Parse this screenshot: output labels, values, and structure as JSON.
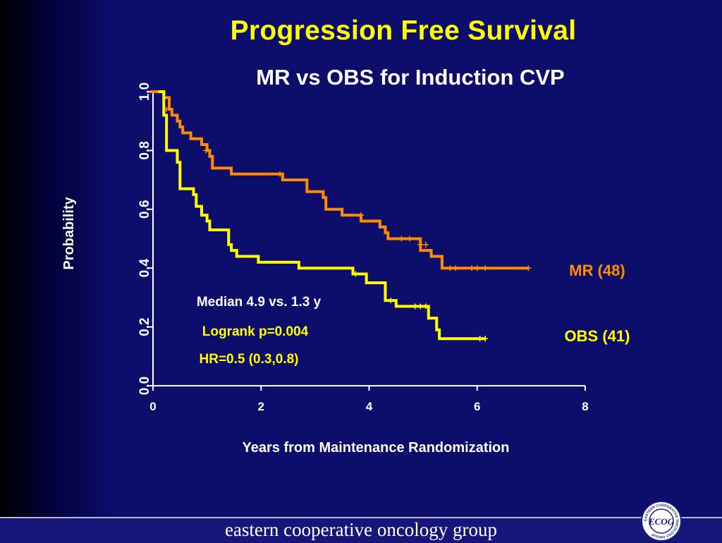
{
  "slide": {
    "title": "Progression Free Survival",
    "subtitle": "MR vs OBS for Induction CVP"
  },
  "chart_data": {
    "type": "line",
    "title": "Progression Free Survival",
    "subtitle": "MR vs OBS for Induction CVP",
    "xlabel": "Years from Maintenance Randomization",
    "ylabel": "Probability",
    "xlim": [
      0,
      8
    ],
    "ylim": [
      0,
      1
    ],
    "xticks": [
      "0",
      "2",
      "4",
      "6",
      "8"
    ],
    "yticks": [
      "0.0",
      "0.2",
      "0.4",
      "0.6",
      "0.8",
      "1.0"
    ],
    "grid": false,
    "series": [
      {
        "name": "MR (48)",
        "color": "#ff8c00",
        "steps": [
          [
            -0.05,
            1.0
          ],
          [
            0.2,
            0.98
          ],
          [
            0.3,
            0.94
          ],
          [
            0.35,
            0.92
          ],
          [
            0.45,
            0.9
          ],
          [
            0.5,
            0.88
          ],
          [
            0.55,
            0.86
          ],
          [
            0.7,
            0.84
          ],
          [
            0.9,
            0.82
          ],
          [
            1.0,
            0.8
          ],
          [
            1.05,
            0.78
          ],
          [
            1.1,
            0.74
          ],
          [
            1.45,
            0.72
          ],
          [
            2.4,
            0.7
          ],
          [
            2.85,
            0.66
          ],
          [
            3.15,
            0.64
          ],
          [
            3.2,
            0.6
          ],
          [
            3.5,
            0.58
          ],
          [
            3.85,
            0.56
          ],
          [
            4.2,
            0.54
          ],
          [
            4.3,
            0.52
          ],
          [
            4.35,
            0.5
          ],
          [
            4.95,
            0.46
          ],
          [
            5.15,
            0.44
          ],
          [
            5.35,
            0.4
          ],
          [
            6.95,
            0.4
          ]
        ],
        "censored": [
          [
            0.25,
            0.94
          ],
          [
            0.98,
            0.8
          ],
          [
            2.35,
            0.72
          ],
          [
            3.85,
            0.58
          ],
          [
            4.6,
            0.5
          ],
          [
            4.75,
            0.5
          ],
          [
            4.95,
            0.48
          ],
          [
            5.05,
            0.48
          ],
          [
            5.5,
            0.4
          ],
          [
            5.6,
            0.4
          ],
          [
            5.9,
            0.4
          ],
          [
            6.0,
            0.4
          ],
          [
            6.15,
            0.4
          ],
          [
            6.95,
            0.4
          ]
        ]
      },
      {
        "name": "OBS (41)",
        "color": "#ffff00",
        "steps": [
          [
            0.1,
            1.0
          ],
          [
            0.2,
            0.92
          ],
          [
            0.25,
            0.8
          ],
          [
            0.45,
            0.76
          ],
          [
            0.5,
            0.67
          ],
          [
            0.75,
            0.65
          ],
          [
            0.8,
            0.61
          ],
          [
            0.9,
            0.58
          ],
          [
            1.0,
            0.56
          ],
          [
            1.05,
            0.53
          ],
          [
            1.4,
            0.48
          ],
          [
            1.45,
            0.46
          ],
          [
            1.55,
            0.44
          ],
          [
            1.95,
            0.42
          ],
          [
            2.7,
            0.4
          ],
          [
            3.7,
            0.38
          ],
          [
            3.95,
            0.35
          ],
          [
            4.3,
            0.29
          ],
          [
            4.5,
            0.27
          ],
          [
            5.1,
            0.23
          ],
          [
            5.25,
            0.19
          ],
          [
            5.3,
            0.16
          ],
          [
            6.15,
            0.16
          ]
        ],
        "censored": [
          [
            3.75,
            0.38
          ],
          [
            4.4,
            0.29
          ],
          [
            4.85,
            0.27
          ],
          [
            4.95,
            0.27
          ],
          [
            5.05,
            0.27
          ],
          [
            6.05,
            0.16
          ],
          [
            6.15,
            0.16
          ]
        ]
      }
    ],
    "annotations": {
      "median": "Median 4.9 vs. 1.3 y",
      "logrank": "Logrank p=0.004",
      "hr": "HR=0.5 (0.3,0.8)"
    }
  },
  "footer": {
    "text": "eastern cooperative oncology group",
    "logo_label": "ECOG",
    "logo_ring_text": "EASTERN COOPERATIVE ONCOLOGY GROUP"
  }
}
